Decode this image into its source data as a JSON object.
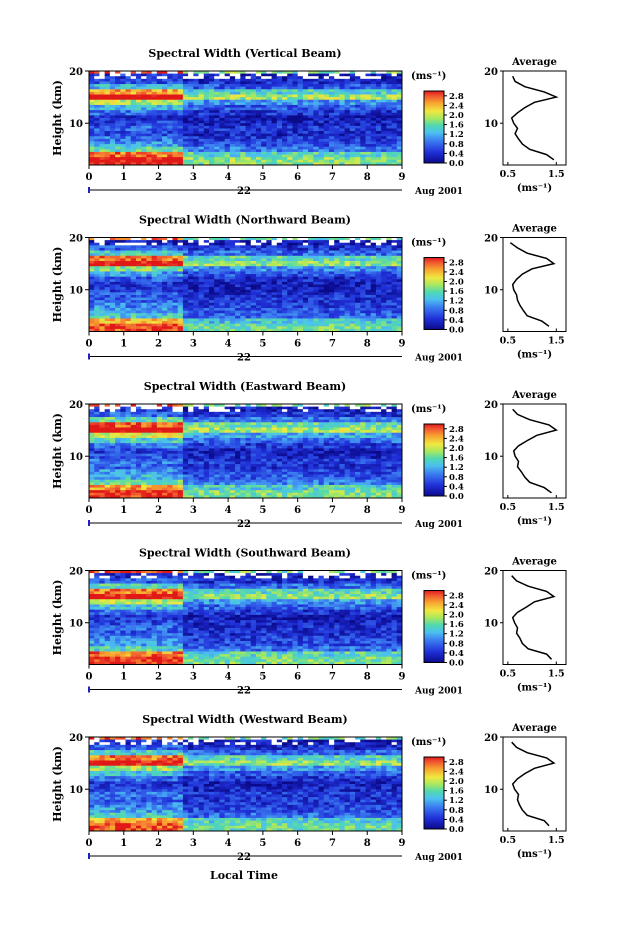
{
  "figure": {
    "xlabel": "Local Time",
    "date_label": "Aug 2001",
    "day_label": "22"
  },
  "chart_data": [
    {
      "type": "heatmap",
      "title": "Spectral Width (Vertical Beam)",
      "xlabel": "",
      "ylabel": "Height (km)",
      "x_ticks": [
        "0",
        "1",
        "2",
        "3",
        "4",
        "5",
        "6",
        "7",
        "8",
        "9"
      ],
      "xlim": [
        0,
        9
      ],
      "y_ticks": [
        "10",
        "20"
      ],
      "ylim": [
        2,
        20
      ],
      "colorbar": {
        "unit": "(ms⁻¹)",
        "ticks": [
          "0.0",
          "0.4",
          "0.8",
          "1.2",
          "1.6",
          "2.0",
          "2.4",
          "2.8"
        ],
        "range": [
          0,
          3.0
        ]
      },
      "profile": {
        "title": "Average",
        "xlabel": "(ms⁻¹)",
        "x_ticks": [
          "0.5",
          "1.5"
        ],
        "xlim": [
          0.4,
          1.7
        ],
        "heights": [
          3,
          4,
          5,
          6,
          7,
          8,
          9,
          10,
          11,
          12,
          13,
          14,
          15,
          16,
          17,
          18,
          19
        ],
        "values": [
          1.45,
          1.3,
          0.95,
          0.8,
          0.72,
          0.65,
          0.7,
          0.62,
          0.58,
          0.7,
          0.85,
          1.05,
          1.5,
          1.25,
          0.85,
          0.65,
          0.6
        ]
      }
    },
    {
      "type": "heatmap",
      "title": "Spectral Width (Northward Beam)",
      "xlabel": "",
      "ylabel": "Height (km)",
      "x_ticks": [
        "0",
        "1",
        "2",
        "3",
        "4",
        "5",
        "6",
        "7",
        "8",
        "9"
      ],
      "xlim": [
        0,
        9
      ],
      "y_ticks": [
        "10",
        "20"
      ],
      "ylim": [
        2,
        20
      ],
      "colorbar": {
        "unit": "(ms⁻¹)",
        "ticks": [
          "0.0",
          "0.4",
          "0.8",
          "1.2",
          "1.6",
          "2.0",
          "2.4",
          "2.8"
        ],
        "range": [
          0,
          3.0
        ]
      },
      "profile": {
        "title": "Average",
        "xlabel": "(ms⁻¹)",
        "x_ticks": [
          "0.5",
          "1.5"
        ],
        "xlim": [
          0.4,
          1.7
        ],
        "heights": [
          3,
          4,
          5,
          6,
          7,
          8,
          9,
          10,
          11,
          12,
          13,
          14,
          15,
          16,
          17,
          18,
          19
        ],
        "values": [
          1.35,
          1.2,
          0.9,
          0.82,
          0.75,
          0.7,
          0.68,
          0.62,
          0.6,
          0.68,
          0.8,
          1.0,
          1.45,
          1.3,
          0.9,
          0.7,
          0.55
        ]
      }
    },
    {
      "type": "heatmap",
      "title": "Spectral Width (Eastward Beam)",
      "xlabel": "",
      "ylabel": "Height (km)",
      "x_ticks": [
        "0",
        "1",
        "2",
        "3",
        "4",
        "5",
        "6",
        "7",
        "8",
        "9"
      ],
      "xlim": [
        0,
        9
      ],
      "y_ticks": [
        "10",
        "20"
      ],
      "ylim": [
        2,
        20
      ],
      "colorbar": {
        "unit": "(ms⁻¹)",
        "ticks": [
          "0.0",
          "0.4",
          "0.8",
          "1.2",
          "1.6",
          "2.0",
          "2.4",
          "2.8"
        ],
        "range": [
          0,
          3.0
        ]
      },
      "profile": {
        "title": "Average",
        "xlabel": "(ms⁻¹)",
        "x_ticks": [
          "0.5",
          "1.5"
        ],
        "xlim": [
          0.4,
          1.7
        ],
        "heights": [
          3,
          4,
          5,
          6,
          7,
          8,
          9,
          10,
          11,
          12,
          13,
          14,
          15,
          16,
          17,
          18,
          19
        ],
        "values": [
          1.4,
          1.25,
          0.95,
          0.85,
          0.78,
          0.7,
          0.72,
          0.65,
          0.62,
          0.72,
          0.9,
          1.1,
          1.5,
          1.35,
          0.95,
          0.7,
          0.6
        ]
      }
    },
    {
      "type": "heatmap",
      "title": "Spectral Width (Southward Beam)",
      "xlabel": "",
      "ylabel": "Height (km)",
      "x_ticks": [
        "0",
        "1",
        "2",
        "3",
        "4",
        "5",
        "6",
        "7",
        "8",
        "9"
      ],
      "xlim": [
        0,
        9
      ],
      "y_ticks": [
        "10",
        "20"
      ],
      "ylim": [
        2,
        20
      ],
      "colorbar": {
        "unit": "(ms⁻¹)",
        "ticks": [
          "0.0",
          "0.4",
          "0.8",
          "1.2",
          "1.6",
          "2.0",
          "2.4",
          "2.8"
        ],
        "range": [
          0,
          3.0
        ]
      },
      "profile": {
        "title": "Average",
        "xlabel": "(ms⁻¹)",
        "x_ticks": [
          "0.5",
          "1.5"
        ],
        "xlim": [
          0.4,
          1.7
        ],
        "heights": [
          3,
          4,
          5,
          6,
          7,
          8,
          9,
          10,
          11,
          12,
          13,
          14,
          15,
          16,
          17,
          18,
          19
        ],
        "values": [
          1.4,
          1.3,
          0.92,
          0.8,
          0.75,
          0.68,
          0.7,
          0.64,
          0.6,
          0.7,
          0.88,
          1.05,
          1.45,
          1.3,
          0.92,
          0.68,
          0.58
        ]
      }
    },
    {
      "type": "heatmap",
      "title": "Spectral Width (Westward Beam)",
      "xlabel": "Local Time",
      "ylabel": "Height (km)",
      "x_ticks": [
        "0",
        "1",
        "2",
        "3",
        "4",
        "5",
        "6",
        "7",
        "8",
        "9"
      ],
      "xlim": [
        0,
        9
      ],
      "y_ticks": [
        "10",
        "20"
      ],
      "ylim": [
        2,
        20
      ],
      "colorbar": {
        "unit": "(ms⁻¹)",
        "ticks": [
          "0.0",
          "0.4",
          "0.8",
          "1.2",
          "1.6",
          "2.0",
          "2.4",
          "2.8"
        ],
        "range": [
          0,
          3.0
        ]
      },
      "profile": {
        "title": "Average",
        "xlabel": "(ms⁻¹)",
        "x_ticks": [
          "0.5",
          "1.5"
        ],
        "xlim": [
          0.4,
          1.7
        ],
        "heights": [
          3,
          4,
          5,
          6,
          7,
          8,
          9,
          10,
          11,
          12,
          13,
          14,
          15,
          16,
          17,
          18,
          19
        ],
        "values": [
          1.35,
          1.25,
          0.9,
          0.8,
          0.74,
          0.7,
          0.72,
          0.64,
          0.6,
          0.7,
          0.85,
          1.05,
          1.45,
          1.3,
          0.9,
          0.68,
          0.58
        ]
      }
    }
  ]
}
